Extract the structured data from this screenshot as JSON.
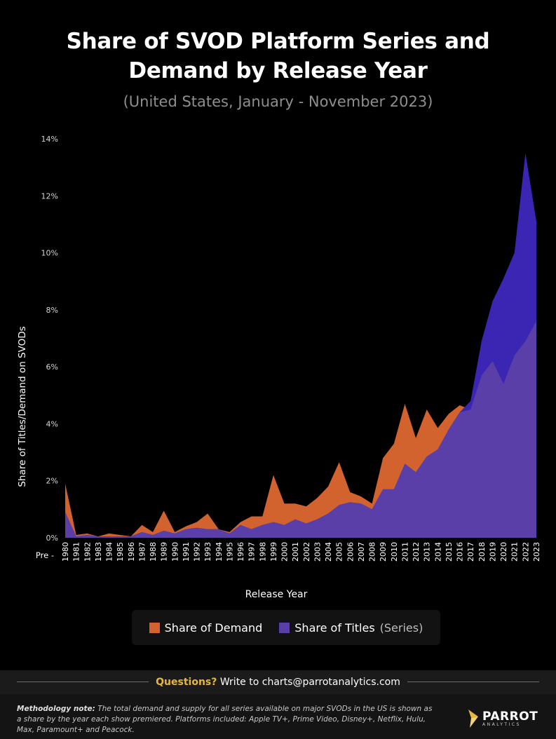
{
  "title_line1": "Share of SVOD Platform Series and",
  "title_line2": "Demand by Release Year",
  "subtitle": "(United States, January - November 2023)",
  "colors": {
    "demand": "#d2622e",
    "titles": "#5b3fa8",
    "titles_overflow": "#3a26b3",
    "background": "#000000",
    "accent": "#e8b73a"
  },
  "chart_data": {
    "type": "area",
    "xlabel": "Release Year",
    "ylabel": "Share of Titles/Demand on SVODs",
    "ylim": [
      0,
      14
    ],
    "yticks": [
      "0%",
      "2%",
      "4%",
      "6%",
      "8%",
      "10%",
      "12%",
      "14%"
    ],
    "grid": false,
    "legend_position": "bottom",
    "categories": [
      "Pre - 1980",
      "1981",
      "1982",
      "1983",
      "1984",
      "1985",
      "1986",
      "1987",
      "1988",
      "1989",
      "1990",
      "1991",
      "1992",
      "1993",
      "1994",
      "1995",
      "1996",
      "1997",
      "1998",
      "1999",
      "2000",
      "2001",
      "2002",
      "2003",
      "2004",
      "2005",
      "2006",
      "2007",
      "2008",
      "2009",
      "2010",
      "2011",
      "2012",
      "2013",
      "2014",
      "2015",
      "2016",
      "2017",
      "2018",
      "2019",
      "2020",
      "2021",
      "2022",
      "2023"
    ],
    "series": [
      {
        "name": "Share of Demand",
        "values": [
          1.9,
          0.1,
          0.15,
          0.05,
          0.15,
          0.1,
          0.05,
          0.45,
          0.2,
          0.95,
          0.2,
          0.4,
          0.55,
          0.85,
          0.3,
          0.2,
          0.55,
          0.75,
          0.75,
          2.2,
          1.2,
          1.2,
          1.1,
          1.4,
          1.8,
          2.65,
          1.6,
          1.45,
          1.2,
          2.8,
          3.3,
          4.7,
          3.5,
          4.5,
          3.85,
          4.35,
          4.65,
          4.5,
          5.7,
          6.2,
          5.4,
          6.4,
          6.9,
          7.6
        ]
      },
      {
        "name": "Share of Titles",
        "name_suffix": "(Series)",
        "values": [
          0.9,
          0.05,
          0.1,
          0.05,
          0.05,
          0.05,
          0.05,
          0.2,
          0.1,
          0.25,
          0.15,
          0.3,
          0.35,
          0.3,
          0.3,
          0.15,
          0.45,
          0.3,
          0.45,
          0.55,
          0.45,
          0.65,
          0.5,
          0.65,
          0.85,
          1.15,
          1.25,
          1.2,
          1.0,
          1.7,
          1.7,
          2.6,
          2.3,
          2.85,
          3.1,
          3.8,
          4.4,
          4.8,
          6.9,
          8.3,
          9.1,
          10.0,
          13.5,
          11.1
        ]
      }
    ]
  },
  "legend": {
    "demand_label": "Share of Demand",
    "titles_label": "Share of Titles",
    "titles_suffix": "(Series)"
  },
  "questions": {
    "lead": "Questions?",
    "text": "Write to",
    "email": "charts@parrotanalytics.com"
  },
  "methodology": {
    "label": "Methodology note:",
    "text": "The total demand and supply for all series available on major SVODs in the US is shown as a share by the year each show premiered. Platforms included: Apple TV+, Prime Video, Disney+, Netflix, Hulu, Max, Paramount+ and Peacock."
  },
  "logo": {
    "word": "PARROT",
    "sub": "ANALYTICS"
  }
}
